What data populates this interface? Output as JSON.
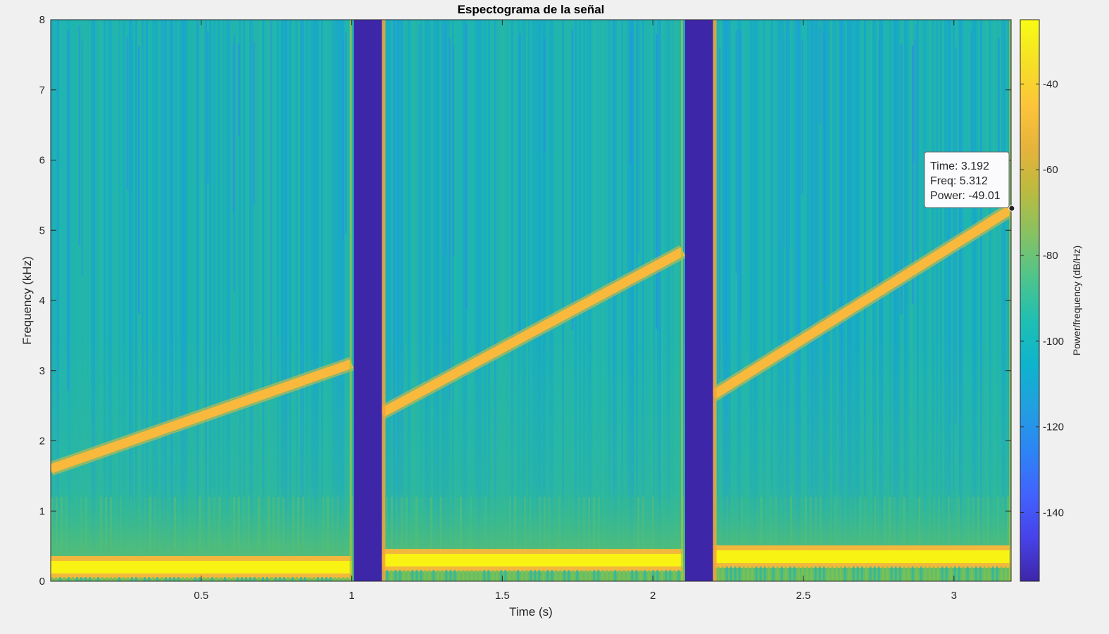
{
  "chart_data": {
    "type": "heatmap",
    "title": "Espectograma de la señal",
    "xlabel": "Time (s)",
    "ylabel": "Frequency (kHz)",
    "xlim": [
      0.0,
      3.19
    ],
    "ylim": [
      0,
      8
    ],
    "xticks": [
      {
        "value": 0.5,
        "label": "0.5"
      },
      {
        "value": 1.0,
        "label": "1"
      },
      {
        "value": 1.5,
        "label": "1.5"
      },
      {
        "value": 2.0,
        "label": "2"
      },
      {
        "value": 2.5,
        "label": "2.5"
      },
      {
        "value": 3.0,
        "label": "3"
      }
    ],
    "yticks": [
      {
        "value": 0,
        "label": "0"
      },
      {
        "value": 1,
        "label": "1"
      },
      {
        "value": 2,
        "label": "2"
      },
      {
        "value": 3,
        "label": "3"
      },
      {
        "value": 4,
        "label": "4"
      },
      {
        "value": 5,
        "label": "5"
      },
      {
        "value": 6,
        "label": "6"
      },
      {
        "value": 7,
        "label": "7"
      },
      {
        "value": 8,
        "label": "8"
      }
    ],
    "segments": [
      {
        "t_start": 0.0,
        "t_end": 1.0,
        "chirp_f_start": 1.6,
        "chirp_f_end": 3.1,
        "tone_freq": 0.2
      },
      {
        "t_start": 1.1,
        "t_end": 2.1,
        "chirp_f_start": 2.4,
        "chirp_f_end": 4.7,
        "tone_freq": 0.3
      },
      {
        "t_start": 2.2,
        "t_end": 3.19,
        "chirp_f_start": 2.65,
        "chirp_f_end": 5.3,
        "tone_freq": 0.35
      }
    ],
    "gaps": [
      {
        "t_start": 1.0,
        "t_end": 1.1
      },
      {
        "t_start": 2.1,
        "t_end": 2.2
      }
    ],
    "colorbar": {
      "label": "Power/frequency (dB/Hz)",
      "range": [
        -156,
        -25
      ],
      "ticks": [
        {
          "value": -40,
          "label": "-40"
        },
        {
          "value": -60,
          "label": "-60"
        },
        {
          "value": -80,
          "label": "-80"
        },
        {
          "value": -100,
          "label": "-100"
        },
        {
          "value": -120,
          "label": "-120"
        },
        {
          "value": -140,
          "label": "-140"
        }
      ],
      "colormap": "parula",
      "placement": "right"
    },
    "datatip": {
      "time_text": "Time: 3.192",
      "freq_text": "Freq: 5.312",
      "power_text": "Power: -49.01",
      "time": 3.192,
      "freq": 5.312,
      "power": -49.01
    },
    "colors": {
      "background": "#f0f0f0",
      "gap": "#3e26a8",
      "chirp": "#f9b93c",
      "tone_core": "#f9f314",
      "tone_edge": "#f2b83d"
    }
  }
}
